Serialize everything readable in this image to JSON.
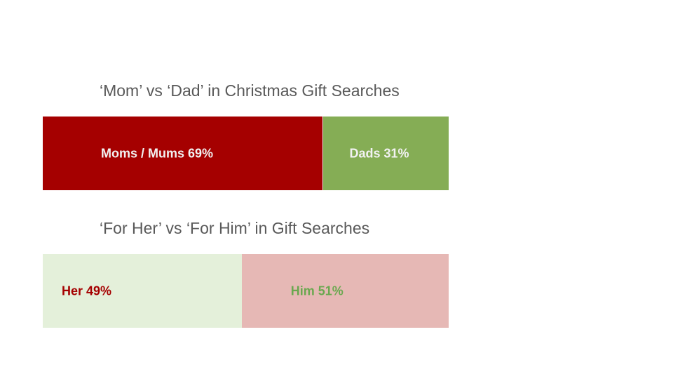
{
  "chart_data": [
    {
      "type": "bar",
      "stacked": true,
      "orientation": "horizontal",
      "title": "‘Mom’ vs ‘Dad’ in Christmas Gift Searches",
      "segments": [
        {
          "label": "Moms / Mums 69%",
          "value": 69,
          "color": "#a50000",
          "text_color": "#f2f2f2"
        },
        {
          "label": "Dads 31%",
          "value": 31,
          "color": "#85ad55",
          "text_color": "#f2f2f2"
        }
      ]
    },
    {
      "type": "bar",
      "stacked": true,
      "orientation": "horizontal",
      "title": "‘For Her’ vs ‘For Him’ in Gift Searches",
      "segments": [
        {
          "label": "Her 49%",
          "value": 49,
          "color": "#e4f0da",
          "text_color": "#a50000"
        },
        {
          "label": "Him 51%",
          "value": 51,
          "color": "#e6b8b5",
          "text_color": "#6aa84f"
        }
      ]
    }
  ]
}
